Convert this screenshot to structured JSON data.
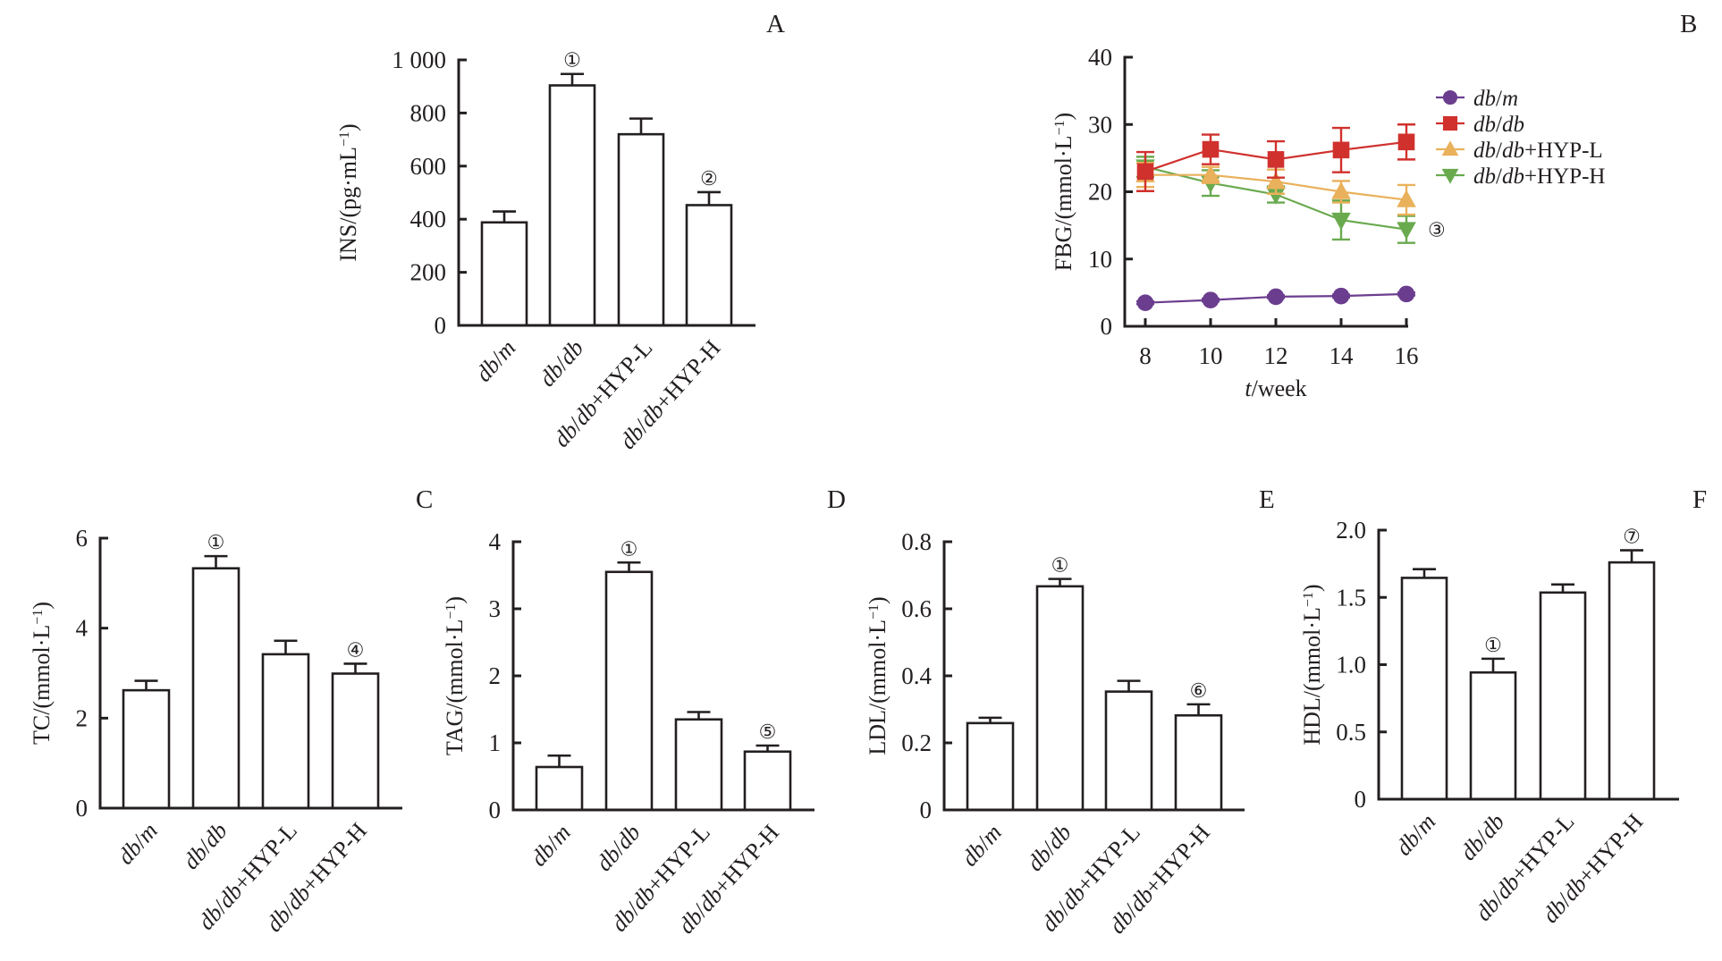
{
  "figure": {
    "series_colors": {
      "db/m": "#6b3d8f",
      "db/db": "#d0312d",
      "db/db+HYP-L": "#e9b15b",
      "db/db+HYP-H": "#6aaa4f"
    }
  },
  "chart_data": [
    {
      "panel": "A",
      "type": "bar",
      "ylabel": "INS/(pg·mL⁻¹)",
      "xlabel": "",
      "ylim": [
        0,
        1000
      ],
      "yticks": [
        0,
        200,
        400,
        600,
        800,
        1000
      ],
      "ytick_labels": [
        "0",
        "200",
        "400",
        "600",
        "800",
        "1 000"
      ],
      "categories": [
        "db/m",
        "db/db",
        "db/db+HYP-L",
        "db/db+HYP-H"
      ],
      "values": [
        388,
        904,
        720,
        453
      ],
      "errors": [
        41,
        43,
        59,
        49
      ],
      "annotations": [
        "",
        "①",
        "",
        "②"
      ]
    },
    {
      "panel": "B",
      "type": "line",
      "ylabel": "FBG/(mmol·L⁻¹)",
      "xlabel": "t/week",
      "ylim": [
        0,
        40
      ],
      "yticks": [
        0,
        10,
        20,
        30,
        40
      ],
      "x": [
        8,
        10,
        12,
        14,
        16
      ],
      "xticks": [
        8,
        10,
        12,
        14,
        16
      ],
      "legend": "top-right, outside",
      "series": [
        {
          "name": "db/m",
          "marker": "circle",
          "values": [
            3.5,
            3.9,
            4.4,
            4.5,
            4.8
          ],
          "errors": [
            0.2,
            0.2,
            0.2,
            0.2,
            0.2
          ]
        },
        {
          "name": "db/db",
          "marker": "square",
          "values": [
            23.0,
            26.3,
            24.8,
            26.2,
            27.4
          ],
          "errors": [
            2.9,
            2.2,
            2.7,
            3.3,
            2.6
          ]
        },
        {
          "name": "db/db+HYP-L",
          "marker": "triangle-up",
          "values": [
            22.5,
            22.5,
            21.5,
            20.0,
            18.8
          ],
          "errors": [
            1.8,
            1.2,
            1.8,
            1.6,
            2.2
          ]
        },
        {
          "name": "db/db+HYP-H",
          "marker": "triangle-down",
          "values": [
            23.7,
            21.3,
            19.6,
            15.8,
            14.4
          ],
          "errors": [
            1.5,
            1.9,
            1.2,
            2.9,
            2.0
          ]
        }
      ],
      "annotations": [
        {
          "series": "db/db+HYP-H",
          "x": 16,
          "text": "③"
        }
      ]
    },
    {
      "panel": "C",
      "type": "bar",
      "ylabel": "TC/(mmol·L⁻¹)",
      "xlabel": "",
      "ylim": [
        0,
        6
      ],
      "yticks": [
        0,
        2,
        4,
        6
      ],
      "ytick_labels": [
        "0",
        "2",
        "4",
        "6"
      ],
      "categories": [
        "db/m",
        "db/db",
        "db/db+HYP-L",
        "db/db+HYP-H"
      ],
      "values": [
        2.62,
        5.33,
        3.42,
        2.99
      ],
      "errors": [
        0.21,
        0.27,
        0.3,
        0.22
      ],
      "annotations": [
        "",
        "①",
        "",
        "④"
      ]
    },
    {
      "panel": "D",
      "type": "bar",
      "ylabel": "TAG/(mmol·L⁻¹)",
      "xlabel": "",
      "ylim": [
        0,
        4
      ],
      "yticks": [
        0,
        1,
        2,
        3,
        4
      ],
      "ytick_labels": [
        "0",
        "1",
        "2",
        "3",
        "4"
      ],
      "categories": [
        "db/m",
        "db/db",
        "db/db+HYP-L",
        "db/db+HYP-H"
      ],
      "values": [
        0.64,
        3.55,
        1.35,
        0.87
      ],
      "errors": [
        0.17,
        0.14,
        0.11,
        0.09
      ],
      "annotations": [
        "",
        "①",
        "",
        "⑤"
      ]
    },
    {
      "panel": "E",
      "type": "bar",
      "ylabel": "LDL/(mmol·L⁻¹)",
      "xlabel": "",
      "ylim": [
        0,
        0.8
      ],
      "yticks": [
        0,
        0.2,
        0.4,
        0.6,
        0.8
      ],
      "ytick_labels": [
        "0",
        "0.2",
        "0.4",
        "0.6",
        "0.8"
      ],
      "categories": [
        "db/m",
        "db/db",
        "db/db+HYP-L",
        "db/db+HYP-H"
      ],
      "values": [
        0.259,
        0.667,
        0.353,
        0.282
      ],
      "errors": [
        0.016,
        0.022,
        0.032,
        0.033
      ],
      "annotations": [
        "",
        "①",
        "",
        "⑥"
      ]
    },
    {
      "panel": "F",
      "type": "bar",
      "ylabel": "HDL/(mmol·L⁻¹)",
      "xlabel": "",
      "ylim": [
        0,
        2.0
      ],
      "yticks": [
        0,
        0.5,
        1.0,
        1.5,
        2.0
      ],
      "ytick_labels": [
        "0",
        "0.5",
        "1.0",
        "1.5",
        "2.0"
      ],
      "categories": [
        "db/m",
        "db/db",
        "db/db+HYP-L",
        "db/db+HYP-H"
      ],
      "values": [
        1.645,
        0.942,
        1.536,
        1.76
      ],
      "errors": [
        0.065,
        0.102,
        0.06,
        0.09
      ],
      "annotations": [
        "",
        "①",
        "",
        "⑦"
      ]
    }
  ]
}
